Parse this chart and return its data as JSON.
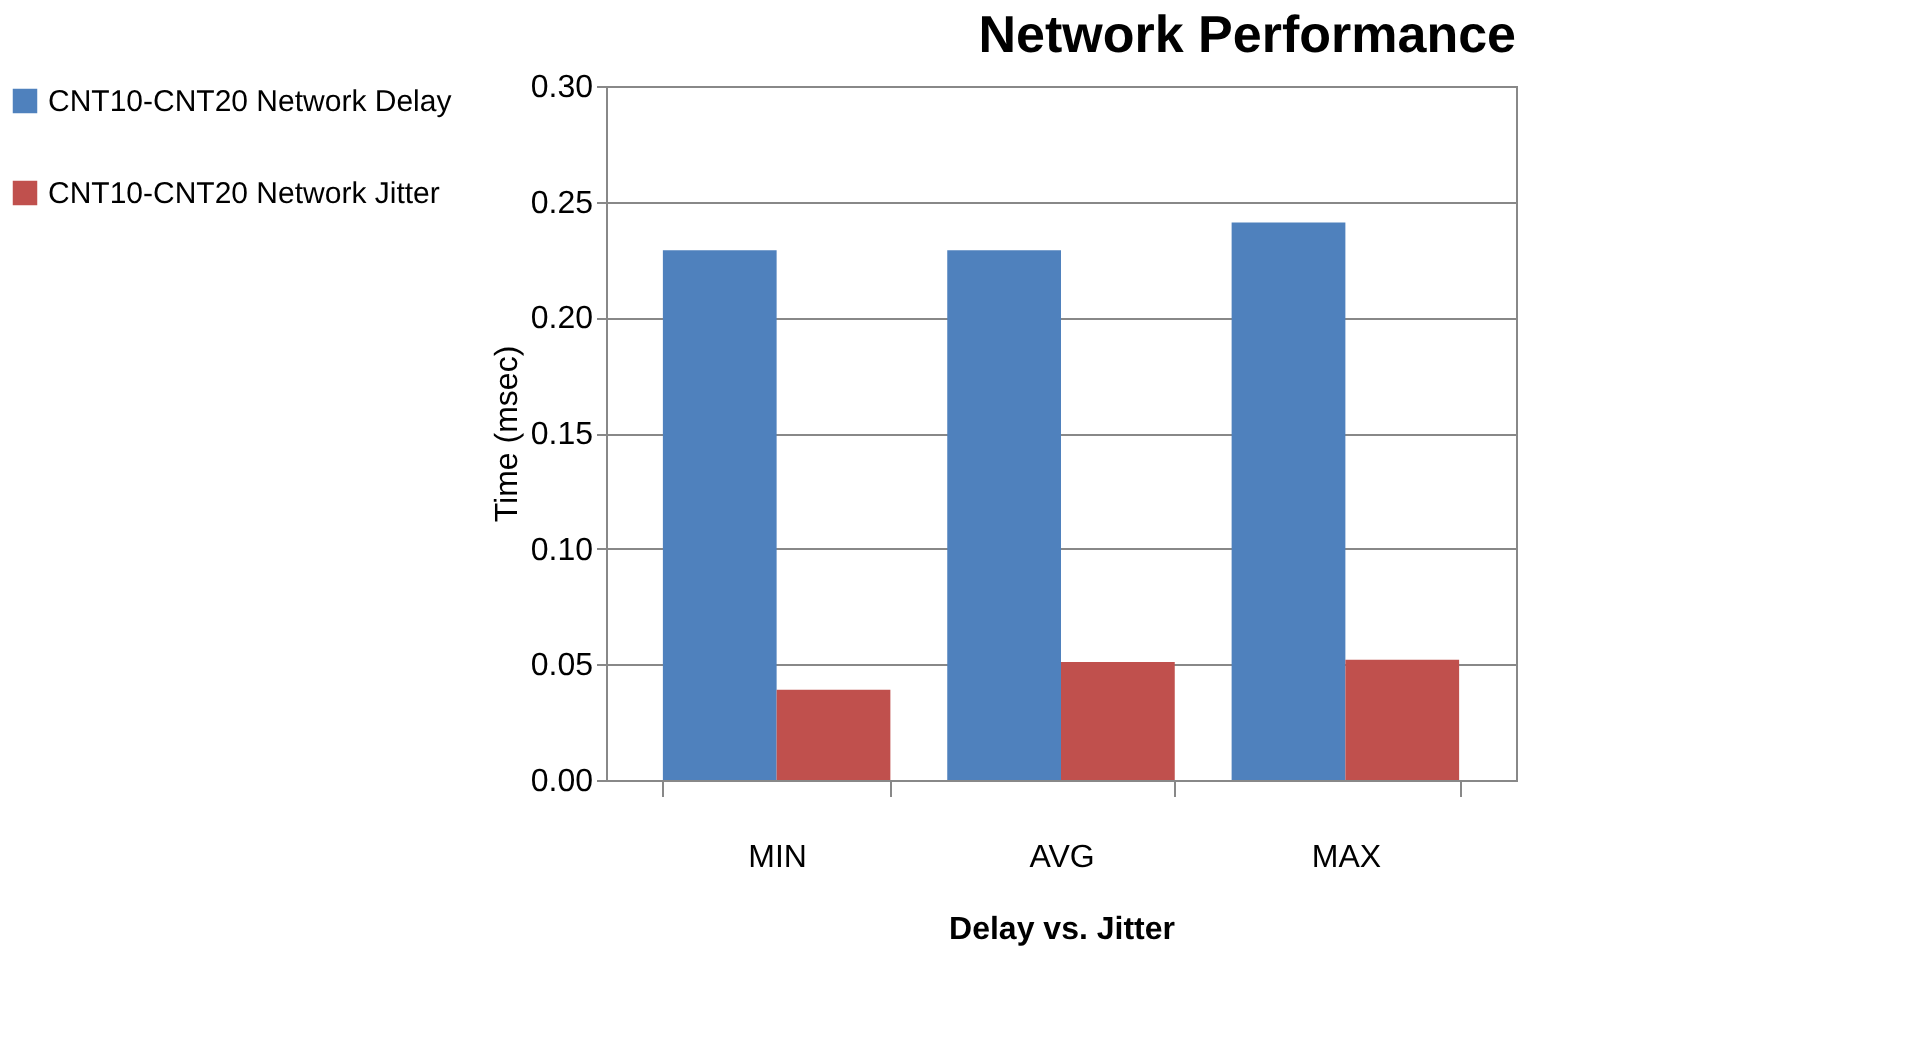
{
  "chart_data": {
    "type": "bar",
    "title": "Network Performance",
    "xlabel": "Delay vs.  Jitter",
    "ylabel": "Time (msec)",
    "categories": [
      "MIN",
      "AVG",
      "MAX"
    ],
    "series": [
      {
        "name": "CNT10-CNT20 Network Delay",
        "color": "#4f81bd",
        "values": [
          0.229,
          0.229,
          0.241
        ]
      },
      {
        "name": "CNT10-CNT20 Network Jitter",
        "color": "#c0504d",
        "values": [
          0.039,
          0.051,
          0.052
        ]
      }
    ],
    "ylim": [
      0,
      0.3
    ],
    "yticks": [
      {
        "value": 0,
        "label": "0.00"
      },
      {
        "value": 0.05,
        "label": "0.05"
      },
      {
        "value": 0.1,
        "label": "0.10"
      },
      {
        "value": 0.15,
        "label": "0.15"
      },
      {
        "value": 0.2,
        "label": "0.20"
      },
      {
        "value": 0.25,
        "label": "0.25"
      },
      {
        "value": 0.3,
        "label": "0.30"
      }
    ],
    "grid": "y",
    "legend": "left"
  }
}
